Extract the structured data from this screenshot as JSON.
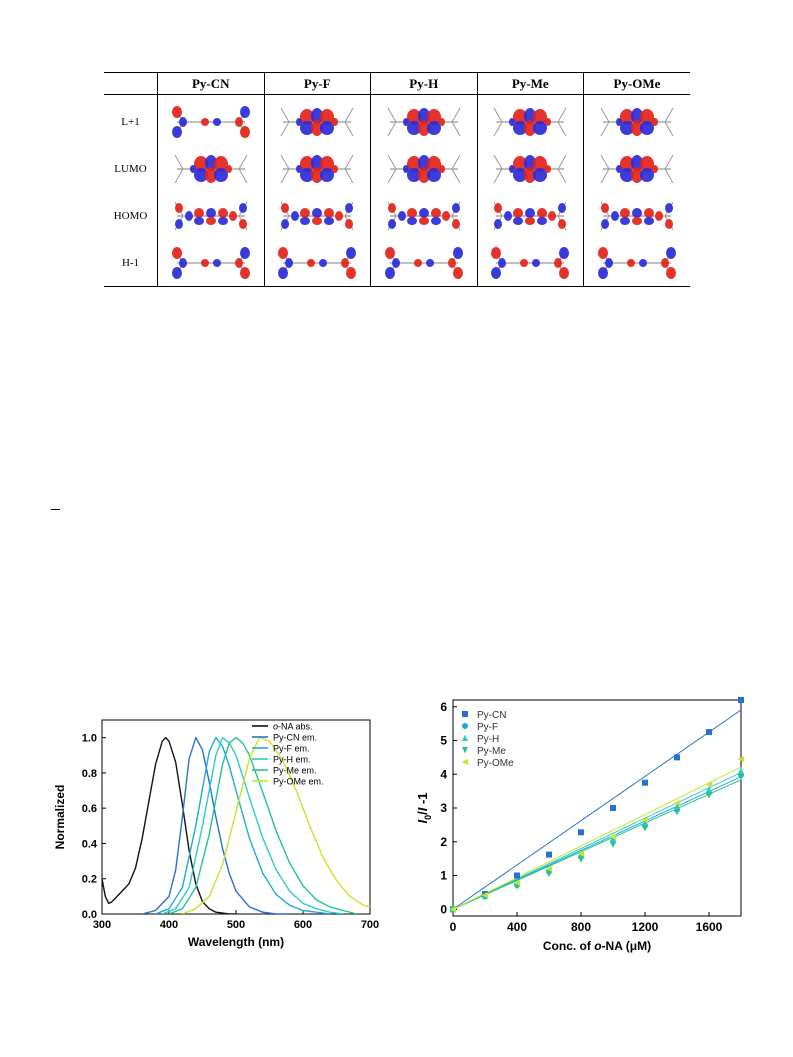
{
  "table": {
    "corner": "",
    "columns": [
      "Py-CN",
      "Py-F",
      "Py-H",
      "Py-Me",
      "Py-OMe"
    ],
    "rows": [
      "L+1",
      "LUMO",
      "HOMO",
      "H-1"
    ],
    "orbital_shapes": [
      [
        "ends",
        "center",
        "center",
        "center",
        "center"
      ],
      [
        "center",
        "center",
        "center",
        "center",
        "center"
      ],
      [
        "spread",
        "spread",
        "spread",
        "spread",
        "spread"
      ],
      [
        "ends",
        "ends",
        "ends",
        "ends",
        "ends"
      ]
    ],
    "colors": {
      "lobe_red": "#e2231a",
      "lobe_blue": "#2b2bd8",
      "skeleton": "#9a9a9a"
    }
  },
  "chart_data": [
    {
      "type": "line",
      "xlabel": "Wavelength (nm)",
      "ylabel": "Normalized",
      "xlim": [
        300,
        700
      ],
      "ylim": [
        0,
        1.1
      ],
      "xticks": [
        300,
        400,
        500,
        600,
        700
      ],
      "yticks": [
        0.0,
        0.2,
        0.4,
        0.6,
        0.8,
        1.0
      ],
      "xtick_labels": [
        "300",
        "400",
        "500",
        "600",
        "700"
      ],
      "ytick_labels": [
        "0.0",
        "0.2",
        "0.4",
        "0.6",
        "0.8",
        "1.0"
      ],
      "legend_position": "top-right",
      "series": [
        {
          "name": "o-NA abs.",
          "legend_prefix": "o",
          "legend_suffix": "-NA abs.",
          "color": "#111111",
          "x": [
            300,
            305,
            310,
            315,
            320,
            330,
            340,
            350,
            360,
            370,
            380,
            390,
            395,
            400,
            410,
            420,
            430,
            440,
            450,
            460,
            470,
            480,
            490,
            500
          ],
          "y": [
            0.2,
            0.1,
            0.06,
            0.07,
            0.09,
            0.13,
            0.17,
            0.26,
            0.43,
            0.64,
            0.85,
            0.98,
            1.0,
            0.98,
            0.86,
            0.62,
            0.36,
            0.17,
            0.07,
            0.03,
            0.01,
            0.005,
            0.0,
            0.0
          ]
        },
        {
          "name": "Py-CN em.",
          "color": "#2a6fd6",
          "x": [
            360,
            380,
            400,
            410,
            420,
            430,
            440,
            450,
            460,
            470,
            480,
            490,
            500,
            520,
            540,
            560,
            580
          ],
          "y": [
            0.0,
            0.02,
            0.1,
            0.25,
            0.55,
            0.88,
            1.0,
            0.93,
            0.75,
            0.55,
            0.37,
            0.23,
            0.13,
            0.04,
            0.01,
            0.0,
            0.0
          ]
        },
        {
          "name": "Py-F em.",
          "color": "#1fa9dd",
          "x": [
            380,
            400,
            420,
            440,
            460,
            470,
            480,
            490,
            500,
            520,
            540,
            560,
            580,
            600,
            620,
            640
          ],
          "y": [
            0.0,
            0.03,
            0.15,
            0.5,
            0.92,
            1.0,
            0.95,
            0.84,
            0.7,
            0.43,
            0.23,
            0.11,
            0.05,
            0.02,
            0.01,
            0.0
          ]
        },
        {
          "name": "Py-H em.",
          "color": "#30c9c9",
          "x": [
            390,
            410,
            430,
            450,
            470,
            480,
            490,
            500,
            520,
            540,
            560,
            580,
            600,
            620,
            640,
            660
          ],
          "y": [
            0.0,
            0.03,
            0.15,
            0.5,
            0.9,
            1.0,
            0.97,
            0.9,
            0.66,
            0.43,
            0.25,
            0.13,
            0.06,
            0.03,
            0.01,
            0.0
          ]
        },
        {
          "name": "Py-Me em.",
          "color": "#22c58a",
          "x": [
            400,
            420,
            440,
            460,
            480,
            490,
            500,
            510,
            520,
            540,
            560,
            580,
            600,
            620,
            640,
            660,
            680
          ],
          "y": [
            0.0,
            0.03,
            0.15,
            0.45,
            0.85,
            0.97,
            1.0,
            0.97,
            0.9,
            0.69,
            0.47,
            0.29,
            0.16,
            0.08,
            0.04,
            0.02,
            0.0
          ]
        },
        {
          "name": "Py-OMe em.",
          "color": "#c4e62e",
          "x": [
            420,
            440,
            460,
            480,
            500,
            520,
            535,
            550,
            570,
            590,
            610,
            630,
            650,
            670,
            690,
            700
          ],
          "y": [
            0.0,
            0.03,
            0.1,
            0.28,
            0.58,
            0.88,
            1.0,
            0.98,
            0.87,
            0.7,
            0.5,
            0.32,
            0.19,
            0.1,
            0.05,
            0.04
          ]
        }
      ]
    },
    {
      "type": "scatter",
      "xlabel_prefix": "Conc. of ",
      "xlabel_italic": "o",
      "xlabel_suffix": "-NA (",
      "xlabel_unit_greek": "μ",
      "xlabel_unit_end": "M)",
      "ylabel_italic": "I",
      "ylabel_sub": "0",
      "ylabel_mid": "/",
      "ylabel_italic2": "I",
      "ylabel_end": " -1",
      "xlim": [
        0,
        1800
      ],
      "ylim": [
        -0.2,
        6.2
      ],
      "xticks": [
        0,
        400,
        800,
        1200,
        1600
      ],
      "yticks": [
        0,
        1,
        2,
        3,
        4,
        5,
        6
      ],
      "xtick_labels": [
        "0",
        "400",
        "800",
        "1200",
        "1600"
      ],
      "ytick_labels": [
        "0",
        "1",
        "2",
        "3",
        "4",
        "5",
        "6"
      ],
      "legend_position": "top-left",
      "x": [
        0,
        200,
        400,
        600,
        800,
        1000,
        1200,
        1400,
        1600,
        1800
      ],
      "series": [
        {
          "name": "Py-CN",
          "marker": "square",
          "color": "#2a6fd6",
          "slope": 0.00328,
          "values": [
            0.0,
            0.45,
            1.0,
            1.62,
            2.28,
            3.0,
            3.75,
            4.5,
            5.25,
            6.2
          ]
        },
        {
          "name": "Py-F",
          "marker": "circle",
          "color": "#1fa9dd",
          "slope": 0.00218,
          "values": [
            0.0,
            0.38,
            0.72,
            1.12,
            1.55,
            2.0,
            2.48,
            2.95,
            3.45,
            3.98
          ]
        },
        {
          "name": "Py-H",
          "marker": "triangle-up",
          "color": "#30c9c9",
          "slope": 0.00225,
          "values": [
            0.0,
            0.4,
            0.75,
            1.15,
            1.6,
            2.08,
            2.55,
            3.05,
            3.55,
            4.1
          ]
        },
        {
          "name": "Py-Me",
          "marker": "triangle-down",
          "color": "#22c58a",
          "slope": 0.00213,
          "values": [
            0.0,
            0.36,
            0.68,
            1.05,
            1.48,
            1.92,
            2.4,
            2.88,
            3.38,
            3.92
          ]
        },
        {
          "name": "Py-OMe",
          "marker": "triangle-left",
          "color": "#c4e62e",
          "slope": 0.00234,
          "values": [
            0.0,
            0.42,
            0.78,
            1.2,
            1.65,
            2.15,
            2.65,
            3.15,
            3.7,
            4.45
          ]
        }
      ]
    }
  ]
}
